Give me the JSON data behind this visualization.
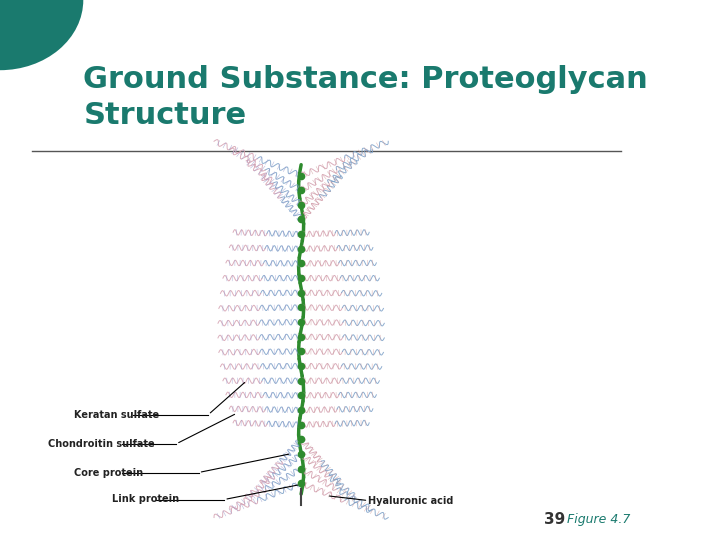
{
  "title": "Ground Substance: Proteoglycan\nStructure",
  "title_color": "#1a7a6e",
  "title_fontsize": 22,
  "title_fontstyle": "bold",
  "bg_color": "#ffffff",
  "left_circle_color": "#1a7a6e",
  "separator_color": "#555555",
  "page_number": "39",
  "figure_label": "Figure 4.7",
  "figure_label_color": "#1a7a6e",
  "core_protein_color": "#2e8b2e",
  "keratan_sulfate_color": "#7b9fc7",
  "chondroitin_sulfate_color": "#d4a0b0",
  "label_color": "#222222",
  "label_fontsize": 7
}
